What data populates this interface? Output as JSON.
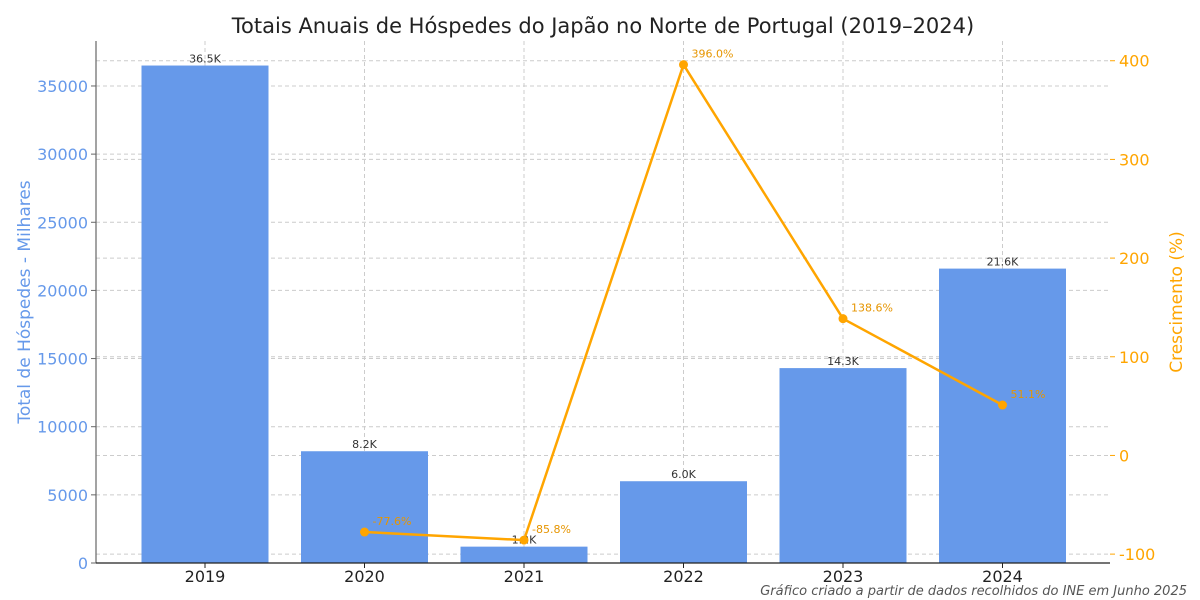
{
  "chart_data": {
    "type": "bar+line",
    "title": "Totais Anuais de Hóspedes do Japão no Norte de Portugal (2019–2024)",
    "categories": [
      "2019",
      "2020",
      "2021",
      "2022",
      "2023",
      "2024"
    ],
    "series": [
      {
        "name": "Total de Hóspedes",
        "type": "bar",
        "axis": "left",
        "color": "#6699ea",
        "values": [
          36500,
          8200,
          1200,
          6000,
          14300,
          21600
        ],
        "labels": [
          "36.5K",
          "8.2K",
          "1.2K",
          "6.0K",
          "14.3K",
          "21.6K"
        ]
      },
      {
        "name": "Crescimento (%)",
        "type": "line",
        "axis": "right",
        "color": "#ffa500",
        "values": [
          null,
          -77.6,
          -85.8,
          396.0,
          138.6,
          51.1
        ],
        "labels": [
          "",
          "-77.6%",
          "-85.8%",
          "396.0%",
          "138.6%",
          "51.1%"
        ]
      }
    ],
    "ylabel": "Total de Hóspedes - Milhares",
    "y2label": "Crescimento (%)",
    "ylim": [
      0,
      38300
    ],
    "y2lim": [
      -109,
      420
    ],
    "yticks": [
      0,
      5000,
      10000,
      15000,
      20000,
      25000,
      30000,
      35000
    ],
    "y2ticks": [
      -100,
      0,
      100,
      200,
      300,
      400
    ],
    "grid": true,
    "left_axis_color": "#6699ea",
    "right_axis_color": "#ffa500"
  },
  "footnote": "Gráfico criado a partir de dados recolhidos do INE em Junho 2025"
}
